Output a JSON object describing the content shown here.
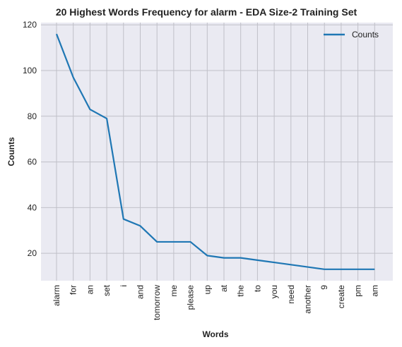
{
  "chart_data": {
    "type": "line",
    "title": "20 Highest Words Frequency for alarm - EDA Size-2 Training Set",
    "xlabel": "Words",
    "ylabel": "Counts",
    "categories": [
      "alarm",
      "for",
      "an",
      "set",
      "i",
      "and",
      "tomorrow",
      "me",
      "please",
      "up",
      "at",
      "the",
      "to",
      "you",
      "need",
      "another",
      "9",
      "create",
      "pm",
      "am"
    ],
    "series": [
      {
        "name": "Counts",
        "values": [
          116,
          97,
          83,
          79,
          35,
          32,
          25,
          25,
          25,
          19,
          18,
          18,
          17,
          16,
          15,
          14,
          13,
          13,
          13,
          13
        ]
      }
    ],
    "ylim": [
      8,
      121
    ],
    "yticks": [
      20,
      40,
      60,
      80,
      100,
      120
    ],
    "grid": true,
    "legend_position": "top-right",
    "colors": {
      "line": "#1f77b4",
      "plot_background": "#eaeaf2",
      "grid": "#c0c0c8"
    }
  }
}
